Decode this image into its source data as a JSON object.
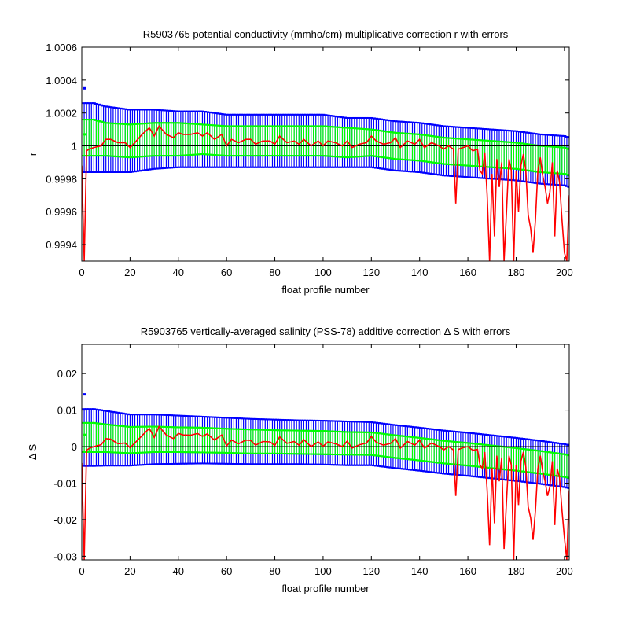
{
  "chart_data": [
    {
      "type": "line",
      "title": "R5903765 potential conductivity (mmho/cm) multiplicative correction r with errors",
      "xlabel": "float profile number",
      "ylabel": "r",
      "xlim": [
        0,
        202
      ],
      "ylim": [
        0.9993,
        1.0006
      ],
      "xticks": [
        0,
        20,
        40,
        60,
        80,
        100,
        120,
        140,
        160,
        180,
        200
      ],
      "xtick_labels": [
        "0",
        "20",
        "40",
        "60",
        "80",
        "100",
        "120",
        "140",
        "160",
        "180",
        "200"
      ],
      "yticks": [
        0.9994,
        0.9996,
        0.9998,
        1.0,
        1.0002,
        1.0004,
        1.0006
      ],
      "ytick_labels": [
        "0.9994",
        "0.9996",
        "0.9998",
        "1",
        "1.0002",
        "1.0004",
        "1.0006"
      ],
      "grid": false,
      "reference_line": 1.0,
      "isolated_points": [
        {
          "x": 0,
          "y": 1.00035,
          "color": "#0000ff"
        },
        {
          "x": 0,
          "y": 1.00007,
          "color": "#00ff00"
        }
      ],
      "series": [
        {
          "color": "#0000ff",
          "style": "errorbar",
          "x": [
            1,
            5,
            10,
            20,
            30,
            40,
            50,
            60,
            70,
            80,
            90,
            100,
            110,
            120,
            130,
            140,
            150,
            160,
            170,
            180,
            190,
            200,
            202
          ],
          "y": [
            1.00005,
            1.00005,
            1.00004,
            1.00003,
            1.00004,
            1.00004,
            1.00004,
            1.00003,
            1.00003,
            1.00003,
            1.00003,
            1.00003,
            1.00002,
            1.00002,
            1.0,
            0.99999,
            0.99997,
            0.99996,
            0.99995,
            0.99994,
            0.99992,
            0.99991,
            0.9999
          ],
          "err": [
            0.00021,
            0.00021,
            0.0002,
            0.00019,
            0.00018,
            0.00017,
            0.00017,
            0.00016,
            0.00016,
            0.00016,
            0.00016,
            0.00016,
            0.00015,
            0.00015,
            0.00015,
            0.00015,
            0.00015,
            0.00015,
            0.00015,
            0.00015,
            0.00015,
            0.00015,
            0.00015
          ]
        },
        {
          "color": "#00ff00",
          "style": "errorbar",
          "x": [
            1,
            5,
            10,
            20,
            30,
            40,
            50,
            60,
            70,
            80,
            90,
            100,
            110,
            120,
            130,
            140,
            150,
            160,
            170,
            180,
            190,
            200,
            202
          ],
          "y": [
            1.00005,
            1.00005,
            1.00004,
            1.00003,
            1.00004,
            1.00004,
            1.00004,
            1.00003,
            1.00003,
            1.00003,
            1.00003,
            1.00003,
            1.00002,
            1.00002,
            1.0,
            0.99999,
            0.99997,
            0.99996,
            0.99995,
            0.99994,
            0.99992,
            0.99991,
            0.9999
          ],
          "err": [
            0.00011,
            0.00011,
            0.0001,
            0.0001,
            0.0001,
            0.0001,
            9e-05,
            9e-05,
            9e-05,
            9e-05,
            9e-05,
            9e-05,
            9e-05,
            8e-05,
            8e-05,
            8e-05,
            8e-05,
            8e-05,
            8e-05,
            8e-05,
            8e-05,
            8e-05,
            8e-05
          ]
        },
        {
          "color": "#ff0000",
          "style": "line",
          "x": [
            0,
            1,
            2,
            3,
            5,
            8,
            10,
            12,
            15,
            18,
            20,
            22,
            25,
            28,
            30,
            32,
            35,
            38,
            40,
            42,
            45,
            48,
            50,
            52,
            55,
            58,
            60,
            62,
            65,
            68,
            70,
            72,
            75,
            78,
            80,
            82,
            85,
            88,
            90,
            92,
            95,
            98,
            100,
            102,
            105,
            108,
            110,
            112,
            115,
            118,
            120,
            122,
            125,
            128,
            130,
            132,
            135,
            138,
            140,
            142,
            145,
            148,
            150,
            152,
            154,
            155,
            156,
            158,
            160,
            162,
            164,
            165,
            166,
            167,
            168,
            169,
            170,
            171,
            172,
            173,
            174,
            175,
            176,
            177,
            178,
            179,
            180,
            181,
            182,
            183,
            184,
            185,
            186,
            187,
            188,
            189,
            190,
            191,
            192,
            193,
            194,
            195,
            196,
            197,
            198,
            199,
            200,
            201,
            202
          ],
          "y": [
            0.99988,
            0.9993,
            0.99997,
            0.99998,
            0.99999,
            1.0,
            1.00004,
            1.00004,
            1.00002,
            1.00002,
            0.99999,
            1.00002,
            1.00007,
            1.00011,
            1.00006,
            1.00012,
            1.00007,
            1.00005,
            1.00008,
            1.00007,
            1.00007,
            1.00008,
            1.00006,
            1.00008,
            1.00004,
            1.00007,
            1.0,
            1.00004,
            1.00002,
            1.00004,
            1.00004,
            1.00001,
            1.00003,
            1.00003,
            1.00001,
            1.00006,
            1.00002,
            1.00003,
            1.00001,
            1.00004,
            1.0,
            1.00003,
            1.0,
            1.00003,
            1.00002,
            1.0,
            1.00003,
            0.99999,
            1.00001,
            1.00002,
            1.00006,
            1.00003,
            1.00001,
            1.00002,
            1.00005,
            0.99999,
            1.00003,
            1.00001,
            1.00004,
            0.99999,
            1.00002,
            1.0,
            0.99998,
            1.0,
            0.99998,
            0.99965,
            0.99998,
            0.99999,
            1.0,
            0.99997,
            0.99998,
            0.99985,
            0.99983,
            0.99996,
            0.9997,
            0.9993,
            0.99983,
            0.99945,
            0.99992,
            0.99975,
            0.9999,
            0.9993,
            0.9996,
            0.99992,
            0.99985,
            0.9993,
            0.99985,
            0.9996,
            0.99988,
            0.99995,
            0.99985,
            0.99958,
            0.9995,
            0.99935,
            0.99955,
            0.99985,
            0.99993,
            0.99982,
            0.99975,
            0.99965,
            0.99972,
            0.9999,
            0.99945,
            0.99985,
            0.99978,
            0.99955,
            0.99935,
            0.9993,
            0.9997
          ]
        }
      ]
    },
    {
      "type": "line",
      "title": "R5903765 vertically-averaged salinity (PSS-78) additive correction Δ S with errors",
      "xlabel": "float profile number",
      "ylabel": "Δ S",
      "xlim": [
        0,
        202
      ],
      "ylim": [
        -0.031,
        0.028
      ],
      "xticks": [
        0,
        20,
        40,
        60,
        80,
        100,
        120,
        140,
        160,
        180,
        200
      ],
      "xtick_labels": [
        "0",
        "20",
        "40",
        "60",
        "80",
        "100",
        "120",
        "140",
        "160",
        "180",
        "200"
      ],
      "yticks": [
        -0.03,
        -0.02,
        -0.01,
        0,
        0.01,
        0.02
      ],
      "ytick_labels": [
        "-0.03",
        "-0.02",
        "-0.01",
        "0",
        "0.01",
        "0.02"
      ],
      "grid": false,
      "reference_line": 0.0,
      "isolated_points": [
        {
          "x": 0,
          "y": 0.0143,
          "color": "#0000ff"
        },
        {
          "x": 0,
          "y": 0.0032,
          "color": "#00ff00"
        }
      ],
      "series": [
        {
          "color": "#0000ff",
          "style": "errorbar",
          "x": [
            1,
            5,
            10,
            20,
            30,
            40,
            50,
            60,
            70,
            80,
            90,
            100,
            110,
            120,
            130,
            140,
            150,
            160,
            170,
            180,
            190,
            200,
            202
          ],
          "y": [
            0.0025,
            0.0025,
            0.0023,
            0.0018,
            0.002,
            0.0019,
            0.0018,
            0.0016,
            0.0014,
            0.0013,
            0.0012,
            0.0011,
            0.0009,
            0.0008,
            0.0,
            -0.0007,
            -0.0015,
            -0.0021,
            -0.0028,
            -0.0035,
            -0.0043,
            -0.0052,
            -0.0055
          ],
          "err": [
            0.0078,
            0.0078,
            0.0075,
            0.007,
            0.0068,
            0.0066,
            0.0064,
            0.0063,
            0.0062,
            0.0061,
            0.006,
            0.006,
            0.006,
            0.0059,
            0.0059,
            0.0059,
            0.0059,
            0.0059,
            0.0059,
            0.0059,
            0.0059,
            0.0059,
            0.0059
          ]
        },
        {
          "color": "#00ff00",
          "style": "errorbar",
          "x": [
            1,
            5,
            10,
            20,
            30,
            40,
            50,
            60,
            70,
            80,
            90,
            100,
            110,
            120,
            130,
            140,
            150,
            160,
            170,
            180,
            190,
            200,
            202
          ],
          "y": [
            0.0025,
            0.0025,
            0.0023,
            0.0018,
            0.002,
            0.0019,
            0.0018,
            0.0016,
            0.0014,
            0.0013,
            0.0012,
            0.0011,
            0.0009,
            0.0008,
            0.0,
            -0.0007,
            -0.0015,
            -0.0021,
            -0.0028,
            -0.0035,
            -0.0043,
            -0.0052,
            -0.0055
          ],
          "err": [
            0.004,
            0.004,
            0.0038,
            0.0036,
            0.0035,
            0.0034,
            0.0034,
            0.0033,
            0.0033,
            0.0032,
            0.0032,
            0.0032,
            0.0031,
            0.0031,
            0.0031,
            0.0031,
            0.0031,
            0.0031,
            0.0031,
            0.0031,
            0.0031,
            0.0031,
            0.0031
          ]
        },
        {
          "color": "#ff0000",
          "style": "line",
          "x": [
            0,
            1,
            2,
            3,
            5,
            8,
            10,
            12,
            15,
            18,
            20,
            22,
            25,
            28,
            30,
            32,
            35,
            38,
            40,
            42,
            45,
            48,
            50,
            52,
            55,
            58,
            60,
            62,
            65,
            68,
            70,
            72,
            75,
            78,
            80,
            82,
            85,
            88,
            90,
            92,
            95,
            98,
            100,
            102,
            105,
            108,
            110,
            112,
            115,
            118,
            120,
            122,
            125,
            128,
            130,
            132,
            135,
            138,
            140,
            142,
            145,
            148,
            150,
            152,
            154,
            155,
            156,
            158,
            160,
            162,
            164,
            165,
            166,
            167,
            168,
            169,
            170,
            171,
            172,
            173,
            174,
            175,
            176,
            177,
            178,
            179,
            180,
            181,
            182,
            183,
            184,
            185,
            186,
            187,
            188,
            189,
            190,
            191,
            192,
            193,
            194,
            195,
            196,
            197,
            198,
            199,
            200,
            201,
            202
          ],
          "y": [
            -0.0045,
            -0.031,
            -0.001,
            -0.0005,
            0.0,
            0.0005,
            0.0022,
            0.002,
            0.0008,
            0.001,
            -0.0003,
            0.001,
            0.003,
            0.005,
            0.0025,
            0.0055,
            0.0032,
            0.0022,
            0.0036,
            0.0032,
            0.0031,
            0.0036,
            0.0028,
            0.0035,
            0.0018,
            0.0032,
            0.0002,
            0.0018,
            0.0008,
            0.0018,
            0.0017,
            0.0004,
            0.0014,
            0.0013,
            0.0003,
            0.0027,
            0.0009,
            0.0014,
            0.0004,
            0.0019,
            0.0,
            0.0013,
            0.0001,
            0.0013,
            0.0008,
            0.0,
            0.0015,
            -0.0004,
            0.0005,
            0.001,
            0.0028,
            0.0012,
            0.0004,
            0.0009,
            0.0022,
            -0.0004,
            0.0014,
            0.0004,
            0.0018,
            -0.0004,
            0.001,
            0.0,
            -0.0009,
            0.0,
            -0.0009,
            -0.0135,
            -0.0008,
            -0.0003,
            0.0,
            -0.001,
            -0.0008,
            -0.005,
            -0.006,
            -0.0015,
            -0.012,
            -0.027,
            -0.0058,
            -0.021,
            -0.0025,
            -0.0095,
            -0.003,
            -0.028,
            -0.015,
            -0.0025,
            -0.005,
            -0.031,
            -0.005,
            -0.016,
            -0.004,
            -0.0015,
            -0.0055,
            -0.0165,
            -0.0195,
            -0.0255,
            -0.0175,
            -0.006,
            -0.0025,
            -0.0067,
            -0.0095,
            -0.0135,
            -0.011,
            -0.004,
            -0.0215,
            -0.006,
            -0.0085,
            -0.0175,
            -0.025,
            -0.031,
            -0.012
          ]
        }
      ]
    }
  ]
}
